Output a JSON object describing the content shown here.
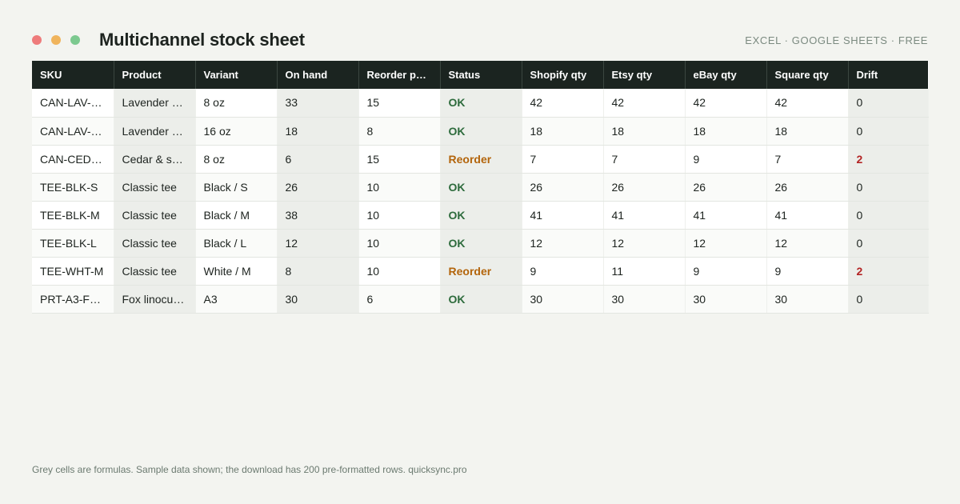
{
  "window": {
    "dots": [
      {
        "name": "close",
        "color": "#ee7b7b"
      },
      {
        "name": "minimize",
        "color": "#f0b45c"
      },
      {
        "name": "maximize",
        "color": "#7cc98f"
      }
    ]
  },
  "header": {
    "title": "Multichannel stock sheet",
    "tagline": "EXCEL · GOOGLE SHEETS · FREE"
  },
  "table": {
    "columns": [
      "SKU",
      "Product",
      "Variant",
      "On hand",
      "Reorder p…",
      "Status",
      "Shopify qty",
      "Etsy qty",
      "eBay qty",
      "Square qty",
      "Drift"
    ],
    "rows": [
      {
        "sku": "CAN-LAV-…",
        "product": "Lavender …",
        "variant": "8 oz",
        "on_hand": "33",
        "reorder": "15",
        "status": "OK",
        "shopify": "42",
        "etsy": "42",
        "ebay": "42",
        "square": "42",
        "drift": "0"
      },
      {
        "sku": "CAN-LAV-…",
        "product": "Lavender …",
        "variant": "16 oz",
        "on_hand": "18",
        "reorder": "8",
        "status": "OK",
        "shopify": "18",
        "etsy": "18",
        "ebay": "18",
        "square": "18",
        "drift": "0"
      },
      {
        "sku": "CAN-CED…",
        "product": "Cedar & s…",
        "variant": "8 oz",
        "on_hand": "6",
        "reorder": "15",
        "status": "Reorder",
        "shopify": "7",
        "etsy": "7",
        "ebay": "9",
        "square": "7",
        "drift": "2"
      },
      {
        "sku": "TEE-BLK-S",
        "product": "Classic tee",
        "variant": "Black / S",
        "on_hand": "26",
        "reorder": "10",
        "status": "OK",
        "shopify": "26",
        "etsy": "26",
        "ebay": "26",
        "square": "26",
        "drift": "0"
      },
      {
        "sku": "TEE-BLK-M",
        "product": "Classic tee",
        "variant": "Black / M",
        "on_hand": "38",
        "reorder": "10",
        "status": "OK",
        "shopify": "41",
        "etsy": "41",
        "ebay": "41",
        "square": "41",
        "drift": "0"
      },
      {
        "sku": "TEE-BLK-L",
        "product": "Classic tee",
        "variant": "Black / L",
        "on_hand": "12",
        "reorder": "10",
        "status": "OK",
        "shopify": "12",
        "etsy": "12",
        "ebay": "12",
        "square": "12",
        "drift": "0"
      },
      {
        "sku": "TEE-WHT-M",
        "product": "Classic tee",
        "variant": "White / M",
        "on_hand": "8",
        "reorder": "10",
        "status": "Reorder",
        "shopify": "9",
        "etsy": "11",
        "ebay": "9",
        "square": "9",
        "drift": "2"
      },
      {
        "sku": "PRT-A3-F…",
        "product": "Fox linocut…",
        "variant": "A3",
        "on_hand": "30",
        "reorder": "6",
        "status": "OK",
        "shopify": "30",
        "etsy": "30",
        "ebay": "30",
        "square": "30",
        "drift": "0"
      }
    ]
  },
  "colors": {
    "header_bg": "#1b2420",
    "ok": "#2d6b3c",
    "reorder": "#b3650c",
    "drift_bad": "#b32424",
    "formula_cell": "#eceeea"
  },
  "footnote": "Grey cells are formulas. Sample data shown; the download has 200 pre-formatted rows. quicksync.pro"
}
